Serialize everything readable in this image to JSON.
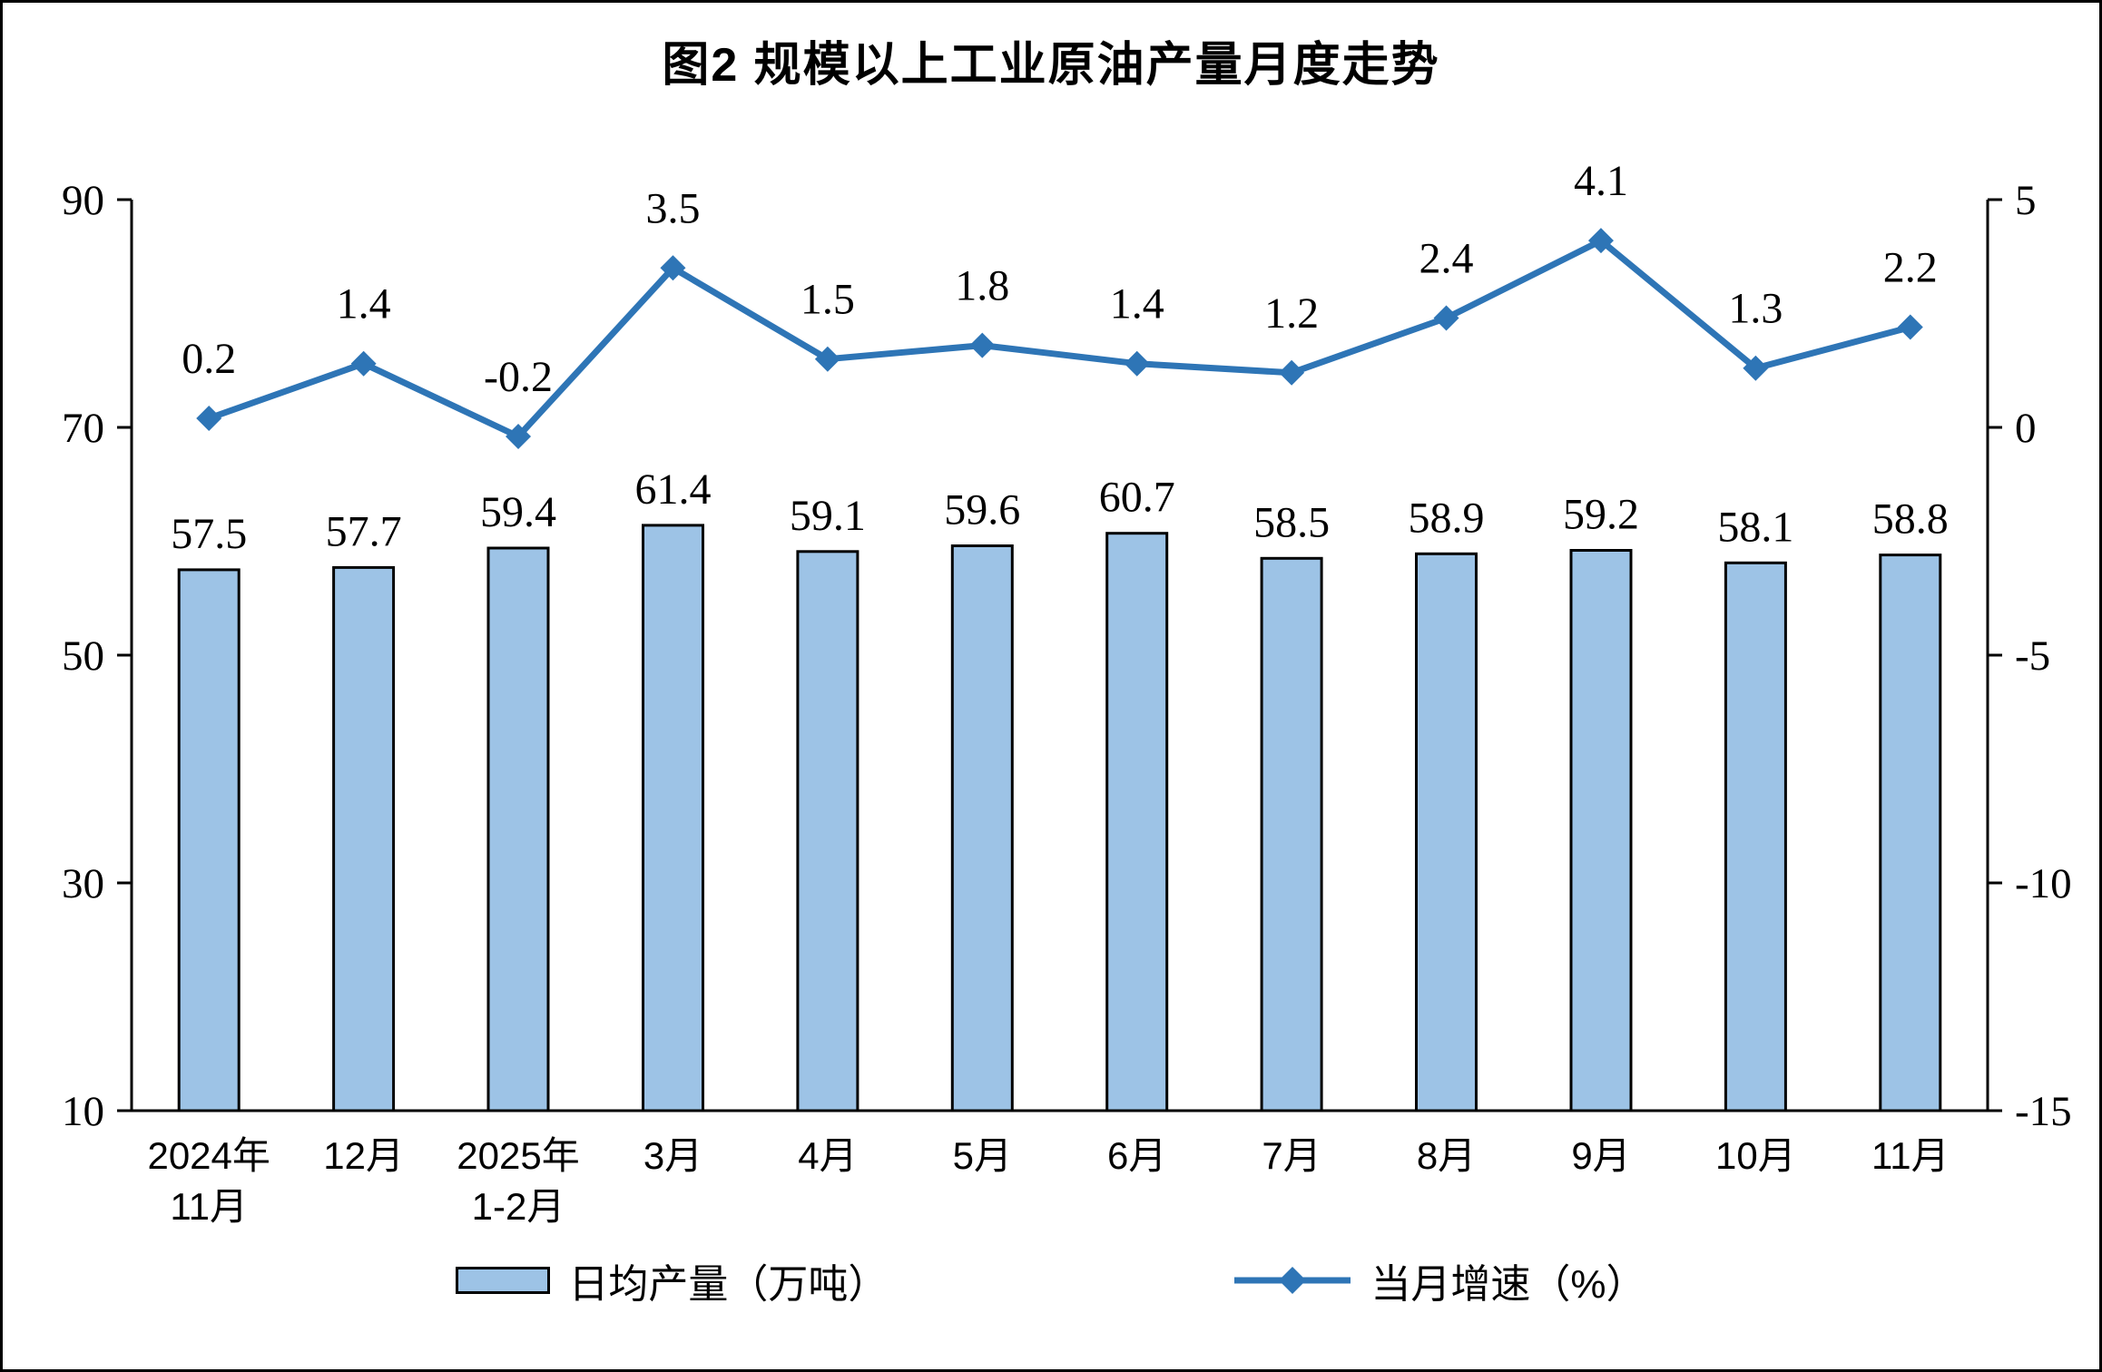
{
  "page": {
    "title": "图2 规模以上工业原油产量月度走势"
  },
  "colors": {
    "bar_fill": "#9DC3E6",
    "bar_border": "#000000",
    "line": "#2E75B6",
    "text": "#000000",
    "background": "#FFFFFF"
  },
  "chart_data": {
    "type": "bar",
    "subtype": "combo-bar-line-dual-axis",
    "title": "图2 规模以上工业原油产量月度走势",
    "categories": [
      "2024年\n11月",
      "12月",
      "2025年\n1-2月",
      "3月",
      "4月",
      "5月",
      "6月",
      "7月",
      "8月",
      "9月",
      "10月",
      "11月"
    ],
    "series": [
      {
        "name": "日均产量（万吨）",
        "type": "bar",
        "axis": "left",
        "values": [
          57.5,
          57.7,
          59.4,
          61.4,
          59.1,
          59.6,
          60.7,
          58.5,
          58.9,
          59.2,
          58.1,
          58.8
        ]
      },
      {
        "name": "当月增速（%）",
        "type": "line",
        "axis": "right",
        "values": [
          0.2,
          1.4,
          -0.2,
          3.5,
          1.5,
          1.8,
          1.4,
          1.2,
          2.4,
          4.1,
          1.3,
          2.2
        ]
      }
    ],
    "left_axis": {
      "min": 10,
      "max": 90,
      "ticks": [
        10,
        30,
        50,
        70,
        90
      ]
    },
    "right_axis": {
      "min": -15,
      "max": 5,
      "ticks": [
        -15,
        -10,
        -5,
        0,
        5
      ]
    },
    "grid": false,
    "legend_position": "bottom",
    "data_labels": true
  }
}
